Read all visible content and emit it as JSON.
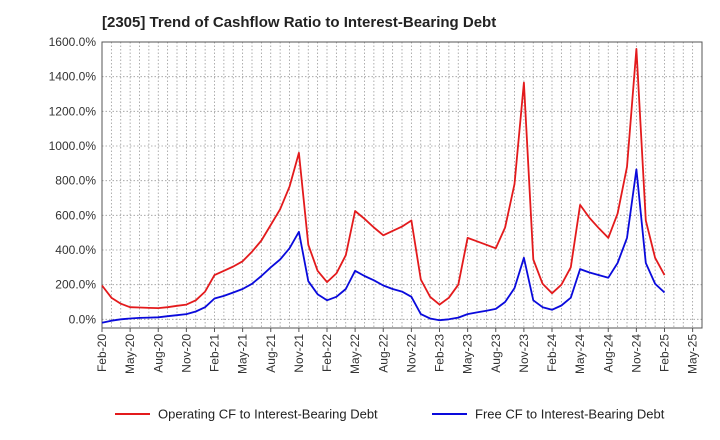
{
  "chart_data": {
    "type": "line",
    "title": "[2305]  Trend of Cashflow Ratio to Interest-Bearing Debt",
    "xlabel": "",
    "ylabel": "",
    "ylim": [
      -50,
      1600
    ],
    "y_ticks": [
      0,
      200,
      400,
      600,
      800,
      1000,
      1200,
      1400,
      1600
    ],
    "y_tick_labels": [
      "0.0%",
      "200.0%",
      "400.0%",
      "600.0%",
      "800.0%",
      "1000.0%",
      "1200.0%",
      "1400.0%",
      "1600.0%"
    ],
    "x_tick_labels": [
      "Feb-20",
      "May-20",
      "Aug-20",
      "Nov-20",
      "Feb-21",
      "May-21",
      "Aug-21",
      "Nov-21",
      "Feb-22",
      "May-22",
      "Aug-22",
      "Nov-22",
      "Feb-23",
      "May-23",
      "Aug-23",
      "Nov-23",
      "Feb-24",
      "May-24",
      "Aug-24",
      "Nov-24",
      "Feb-25",
      "May-25"
    ],
    "x_months": 64,
    "grid": true,
    "legend_position": "bottom",
    "series": [
      {
        "name": "Operating CF to Interest-Bearing Debt",
        "color": "#e31a1c",
        "values": [
          195,
          125,
          90,
          70,
          68,
          66,
          65,
          70,
          78,
          85,
          110,
          160,
          255,
          280,
          305,
          335,
          390,
          455,
          545,
          635,
          765,
          960,
          430,
          280,
          215,
          265,
          370,
          625,
          580,
          530,
          485,
          510,
          535,
          570,
          230,
          130,
          85,
          125,
          200,
          470,
          450,
          430,
          410,
          530,
          780,
          1365,
          345,
          205,
          150,
          200,
          300,
          660,
          585,
          525,
          470,
          610,
          880,
          1560,
          570,
          355,
          255
        ]
      },
      {
        "name": "Free CF to Interest-Bearing Debt",
        "color": "#0a0adc",
        "values": [
          -20,
          -8,
          0,
          5,
          8,
          10,
          12,
          18,
          24,
          30,
          45,
          70,
          120,
          135,
          155,
          175,
          205,
          250,
          300,
          345,
          410,
          505,
          220,
          145,
          110,
          130,
          175,
          280,
          250,
          225,
          195,
          175,
          160,
          130,
          30,
          5,
          -5,
          0,
          10,
          30,
          40,
          50,
          60,
          100,
          180,
          355,
          110,
          70,
          55,
          80,
          125,
          290,
          270,
          255,
          240,
          325,
          470,
          865,
          325,
          205,
          155
        ]
      }
    ]
  }
}
